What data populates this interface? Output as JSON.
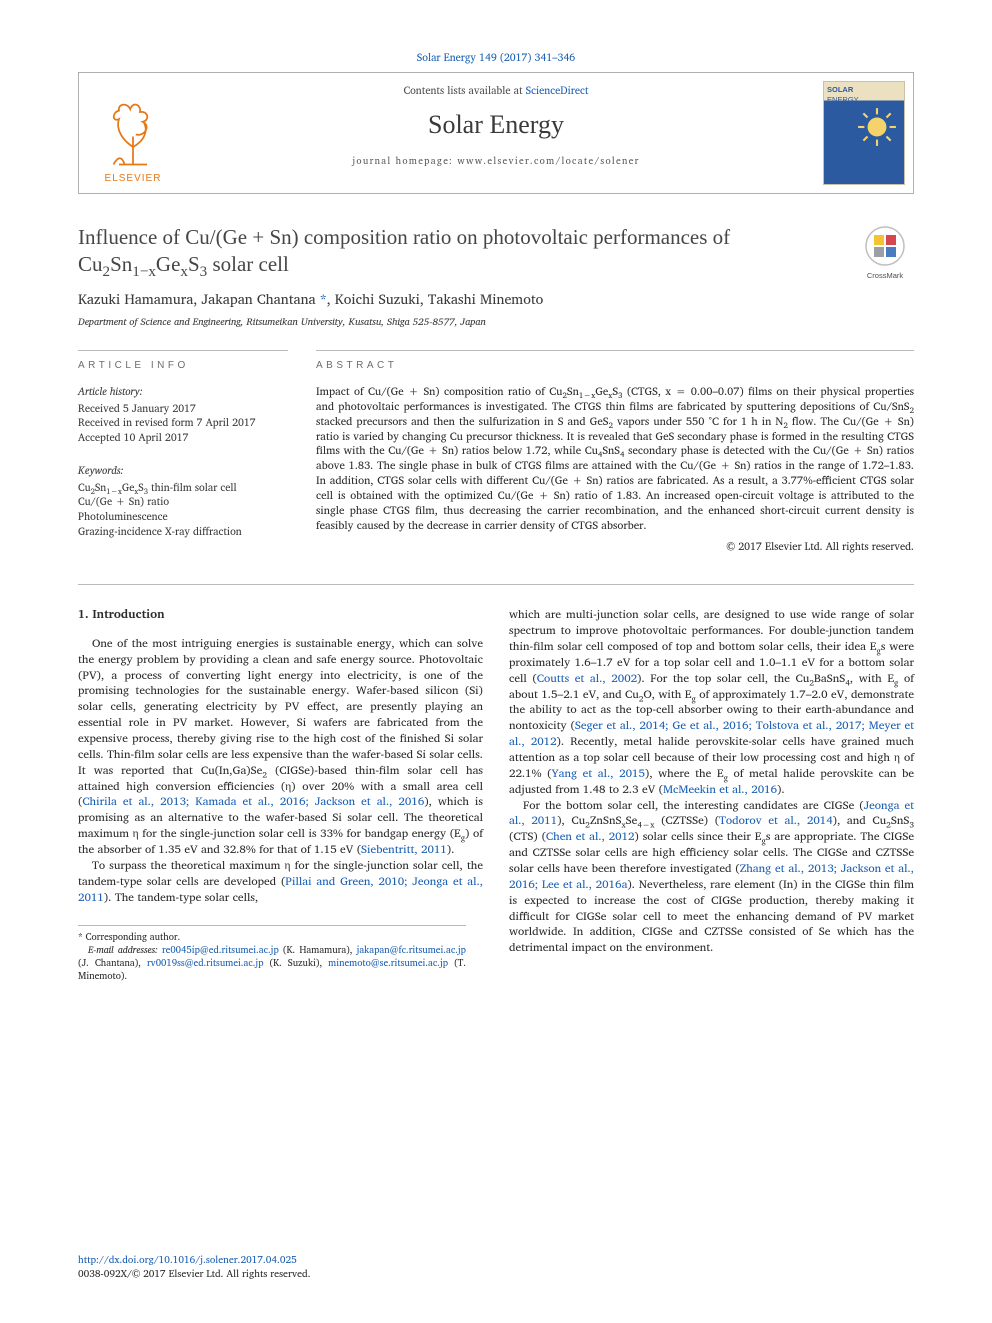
{
  "journal": {
    "citation_prefix": "Solar Energy 149 (2017) 341–346",
    "contents_line_prefix": "Contents lists available at ",
    "contents_link": "ScienceDirect",
    "name": "Solar Energy",
    "homepage_label": "journal homepage: www.elsevier.com/locate/solener",
    "publisher_name": "ELSEVIER",
    "cover_title1": "SOLAR",
    "cover_title2": "ENERGY"
  },
  "colors": {
    "link": "#1a5fb4",
    "text": "#2b2b2b",
    "rule": "#b9b9b9",
    "elsevier_orange": "#e67817",
    "cover_bg_top": "#ebe0c0",
    "cover_bg_main": "#2b5aa0",
    "crossmark_yellow": "#f4c430",
    "crossmark_red": "#d64550",
    "crossmark_blue": "#4b7bbf",
    "crossmark_gray": "#9aa0a6"
  },
  "crossmark_label": "CrossMark",
  "article": {
    "title_html": "Influence of Cu/(Ge + Sn) composition ratio on photovoltaic performances of Cu<sub>2</sub>Sn<sub>1−x</sub>Ge<sub>x</sub>S<sub>3</sub> solar cell",
    "authors_html": "Kazuki Hamamura, Jakapan Chantana <a data-name=\"corr-author-link\" data-interactable=\"true\">*</a>, Koichi Suzuki, Takashi Minemoto",
    "affiliation": "Department of Science and Engineering, Ritsumeikan University, Kusatsu, Shiga 525-8577, Japan"
  },
  "info": {
    "heading": "ARTICLE INFO",
    "history_hd": "Article history:",
    "hist1": "Received 5 January 2017",
    "hist2": "Received in revised form 7 April 2017",
    "hist3": "Accepted 10 April 2017",
    "keywords_hd": "Keywords:",
    "kw1_html": "Cu<sub>2</sub>Sn<sub>1−x</sub>Ge<sub>x</sub>S<sub>3</sub> thin-film solar cell",
    "kw2": "Cu/(Ge + Sn) ratio",
    "kw3": "Photoluminescence",
    "kw4": "Grazing-incidence X-ray diffraction"
  },
  "abstract": {
    "heading": "ABSTRACT",
    "text_html": "Impact of Cu/(Ge + Sn) composition ratio of Cu<sub>2</sub>Sn<sub>1−x</sub>Ge<sub>x</sub>S<sub>3</sub> (CTGS, x = 0.00–0.07) films on their physical properties and photovoltaic performances is investigated. The CTGS thin films are fabricated by sputtering depositions of Cu/SnS<sub>2</sub> stacked precursors and then the sulfurization in S and GeS<sub>2</sub> vapors under 550 °C for 1 h in N<sub>2</sub> flow. The Cu/(Ge + Sn) ratio is varied by changing Cu precursor thickness. It is revealed that GeS secondary phase is formed in the resulting CTGS films with the Cu/(Ge + Sn) ratios below 1.72, while Cu<sub>4</sub>SnS<sub>4</sub> secondary phase is detected with the Cu/(Ge + Sn) ratios above 1.83. The single phase in bulk of CTGS films are attained with the Cu/(Ge + Sn) ratios in the range of 1.72–1.83. In addition, CTGS solar cells with different Cu/(Ge + Sn) ratios are fabricated. As a result, a 3.77%-efficient CTGS solar cell is obtained with the optimized Cu/(Ge + Sn) ratio of 1.83. An increased open-circuit voltage is attributed to the single phase CTGS film, thus decreasing the carrier recombination, and the enhanced short-circuit current density is feasibly caused by the decrease in carrier density of CTGS absorber.",
    "copyright": "© 2017 Elsevier Ltd. All rights reserved."
  },
  "body": {
    "h_intro": "1. Introduction",
    "left_p1_html": "One of the most intriguing energies is sustainable energy, which can solve the energy problem by providing a clean and safe energy source. Photovoltaic (PV), a process of converting light energy into electricity, is one of the promising technologies for the sustainable energy. Wafer-based silicon (Si) solar cells, generating electricity by PV effect, are presently playing an essential role in PV market. However, Si wafers are fabricated from the expensive process, thereby giving rise to the high cost of the finished Si solar cells. Thin-film solar cells are less expensive than the wafer-based Si solar cells. It was reported that Cu(In,Ga)Se<sub>2</sub> (CIGSe)-based thin-film solar cell has attained high conversion efficiencies (η) over 20% with a small area cell (<a data-name=\"ref-link\" data-interactable=\"true\">Chirila et al., 2013; Kamada et al., 2016; Jackson et al., 2016</a>), which is promising as an alternative to the wafer-based Si solar cell. The theoretical maximum η for the single-junction solar cell is 33% for bandgap energy (E<sub>g</sub>) of the absorber of 1.35 eV and 32.8% for that of 1.15 eV (<a data-name=\"ref-link\" data-interactable=\"true\">Siebentritt, 2011</a>).",
    "left_p2_html": "To surpass the theoretical maximum η for the single-junction solar cell, the tandem-type solar cells are developed (<a data-name=\"ref-link\" data-interactable=\"true\">Pillai and Green, 2010; Jeonga et al., 2011</a>). The tandem-type solar cells, ",
    "right_p1_html": "which are multi-junction solar cells, are designed to use wide range of solar spectrum to improve photovoltaic performances. For double-junction tandem thin-film solar cell composed of top and bottom solar cells, their idea E<sub>g</sub>s were proximately 1.6–1.7 eV for a top solar cell and 1.0–1.1 eV for a bottom solar cell (<a data-name=\"ref-link\" data-interactable=\"true\">Coutts et al., 2002</a>). For the top solar cell, the Cu<sub>2</sub>BaSnS<sub>4</sub>, with E<sub>g</sub> of about 1.5–2.1 eV, and Cu<sub>2</sub>O, with E<sub>g</sub> of approximately 1.7–2.0 eV, demonstrate the ability to act as the top-cell absorber owing to their earth-abundance and nontoxicity (<a data-name=\"ref-link\" data-interactable=\"true\">Seger et al., 2014; Ge et al., 2016; Tolstova et al., 2017; Meyer et al., 2012</a>). Recently, metal halide perovskite-solar cells have grained much attention as a top solar cell because of their low processing cost and high η of 22.1% (<a data-name=\"ref-link\" data-interactable=\"true\">Yang et al., 2015</a>), where the E<sub>g</sub> of metal halide perovskite can be adjusted from 1.48 to 2.3 eV (<a data-name=\"ref-link\" data-interactable=\"true\">McMeekin et al., 2016</a>).",
    "right_p2_html": "For the bottom solar cell, the interesting candidates are CIGSe (<a data-name=\"ref-link\" data-interactable=\"true\">Jeonga et al., 2011</a>), Cu<sub>2</sub>ZnSnS<sub>x</sub>Se<sub>4−x</sub> (CZTSSe) (<a data-name=\"ref-link\" data-interactable=\"true\">Todorov et al., 2014</a>), and Cu<sub>2</sub>SnS<sub>3</sub> (CTS) (<a data-name=\"ref-link\" data-interactable=\"true\">Chen et al., 2012</a>) solar cells since their E<sub>g</sub>s are appropriate. The CIGSe and CZTSSe solar cells are high efficiency solar cells. The CIGSe and CZTSSe solar cells have been therefore investigated (<a data-name=\"ref-link\" data-interactable=\"true\">Zhang et al., 2013; Jackson et al., 2016; Lee et al., 2016a</a>). Nevertheless, rare element (In) in the CIGSe thin film is expected to increase the cost of CIGSe production, thereby making it difficult for CIGSe solar cell to meet the enhancing demand of PV market worldwide. In addition, CIGSe and CZTSSe consisted of Se which has the detrimental impact on the environment."
  },
  "footnotes": {
    "corr": "* Corresponding author.",
    "email_label": "E-mail addresses:",
    "e1": "re0045ip@ed.ritsumei.ac.jp",
    "n1": "(K. Hamamura),",
    "e2": "jakapan@fc.ritsumei.ac.jp",
    "n2": "(J. Chantana),",
    "e3": "rv0019ss@ed.ritsumei.ac.jp",
    "n3": "(K. Suzuki),",
    "e4": "minemoto@se.ritsumei.ac.jp",
    "n4": "(T. Minemoto)."
  },
  "bottom": {
    "doi": "http://dx.doi.org/10.1016/j.solener.2017.04.025",
    "issn_line": "0038-092X/© 2017 Elsevier Ltd. All rights reserved."
  }
}
